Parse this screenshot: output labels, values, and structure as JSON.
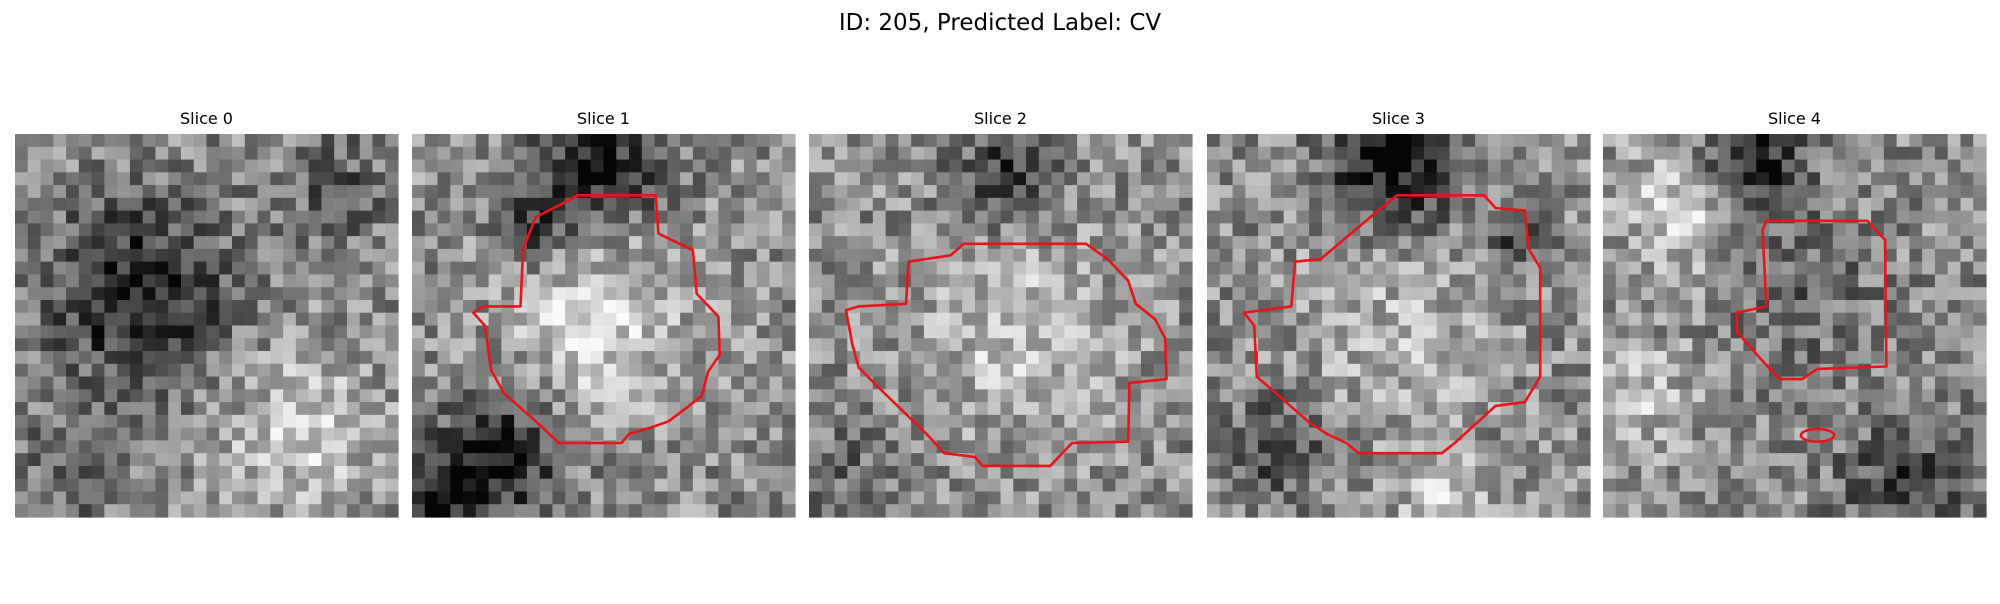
{
  "title": "ID: 205, Predicted Label: CV",
  "panels": [
    {
      "title": "Slice 0"
    },
    {
      "title": "Slice 1"
    },
    {
      "title": "Slice 2"
    },
    {
      "title": "Slice 3"
    },
    {
      "title": "Slice 4"
    }
  ]
}
